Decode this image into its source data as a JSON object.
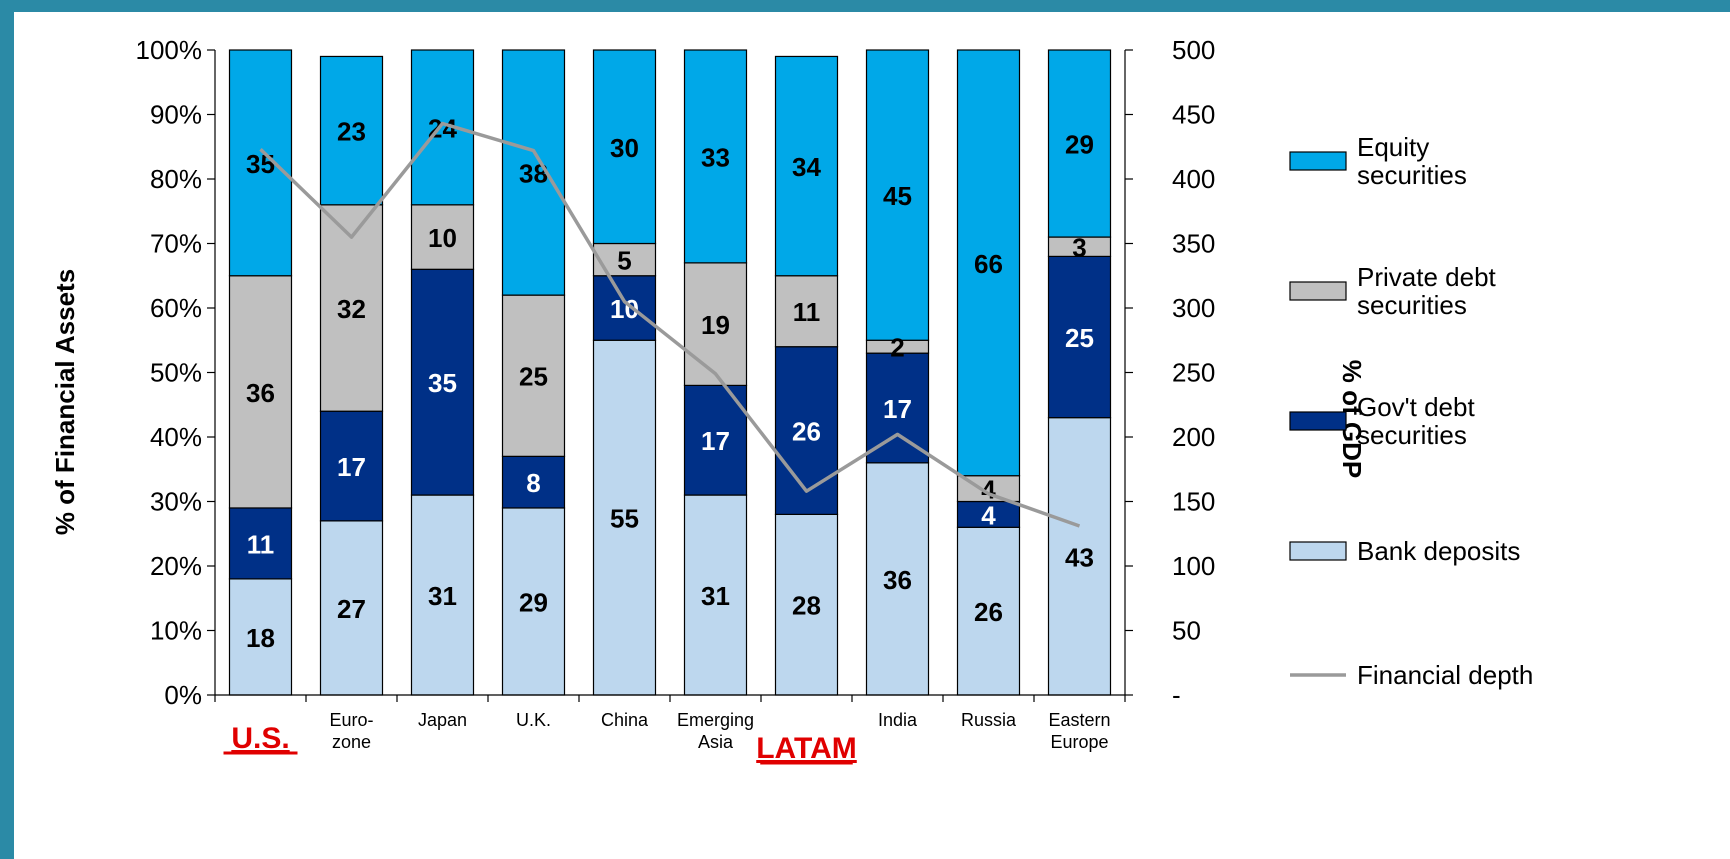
{
  "colors": {
    "frame": "#2b8aa6",
    "equity": "#00a8e8",
    "private": "#c0c0c0",
    "govt": "#003087",
    "bank": "#bdd7ee",
    "line": "#9a9a9a",
    "highlight": "#e00000"
  },
  "chart_data": {
    "type": "bar",
    "stacked": true,
    "percent_stacked": true,
    "categories": [
      [
        "U.S."
      ],
      [
        "Euro-",
        "zone"
      ],
      [
        "Japan"
      ],
      [
        "U.K."
      ],
      [
        "China"
      ],
      [
        "Emerging",
        "Asia"
      ],
      [
        "LATAM"
      ],
      [
        "India"
      ],
      [
        "Russia"
      ],
      [
        "Eastern",
        "Europe"
      ]
    ],
    "highlighted_categories": [
      0,
      6
    ],
    "series": [
      {
        "name": "Bank deposits",
        "color": "#bdd7ee",
        "label_color": "#000000",
        "values": [
          18,
          27,
          31,
          29,
          55,
          31,
          28,
          36,
          26,
          43
        ]
      },
      {
        "name": "Gov't debt securities",
        "color": "#003087",
        "label_color": "#ffffff",
        "values": [
          11,
          17,
          35,
          8,
          10,
          17,
          26,
          17,
          4,
          25
        ]
      },
      {
        "name": "Private debt securities",
        "color": "#c0c0c0",
        "label_color": "#000000",
        "values": [
          36,
          32,
          10,
          25,
          5,
          19,
          11,
          2,
          4,
          3
        ]
      },
      {
        "name": "Equity securities",
        "color": "#00a8e8",
        "label_color": "#000000",
        "values": [
          35,
          23,
          24,
          38,
          30,
          33,
          34,
          45,
          66,
          29
        ]
      }
    ],
    "line_series": {
      "name": "Financial depth",
      "axis": "right",
      "values": [
        423,
        355,
        443,
        422,
        305,
        249,
        158,
        202,
        156,
        131
      ]
    },
    "left_axis": {
      "label": "% of Financial Assets",
      "ticks": [
        "0%",
        "10%",
        "20%",
        "30%",
        "40%",
        "50%",
        "60%",
        "70%",
        "80%",
        "90%",
        "100%"
      ],
      "ylim": [
        0,
        100
      ]
    },
    "right_axis": {
      "label": "% of GDP",
      "ticks": [
        "-",
        "50",
        "100",
        "150",
        "200",
        "250",
        "300",
        "350",
        "400",
        "450",
        "500"
      ],
      "ylim": [
        0,
        500
      ]
    },
    "legend": {
      "placement": "right",
      "entries": [
        {
          "label": [
            "Equity",
            "securities"
          ],
          "kind": "box",
          "series": "Equity securities"
        },
        {
          "label": [
            "Private debt",
            "securities"
          ],
          "kind": "box",
          "series": "Private debt securities"
        },
        {
          "label": [
            "Gov't debt",
            "securities"
          ],
          "kind": "box",
          "series": "Gov't debt securities"
        },
        {
          "label": [
            "Bank deposits"
          ],
          "kind": "box",
          "series": "Bank deposits"
        },
        {
          "label": [
            "Financial depth"
          ],
          "kind": "line",
          "series": "Financial depth"
        }
      ]
    }
  }
}
